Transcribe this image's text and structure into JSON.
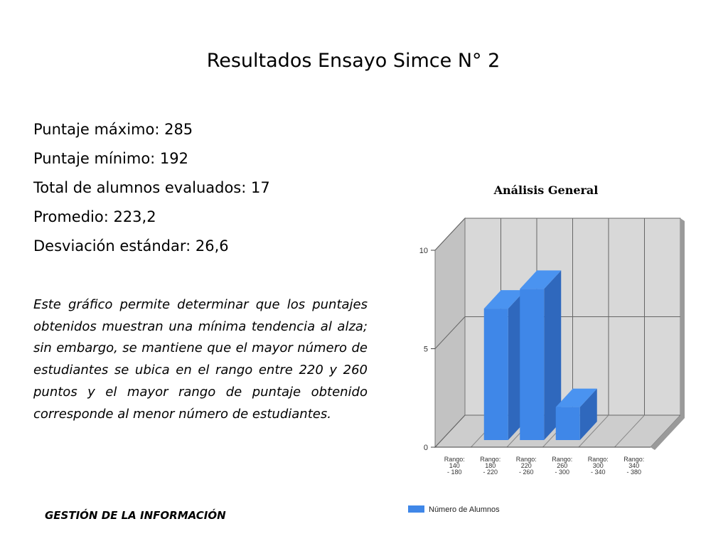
{
  "slide": {
    "title": "Resultados Ensayo Simce N° 2",
    "stats": [
      "Puntaje máximo: 285",
      "Puntaje mínimo: 192",
      "Total de alumnos evaluados: 17",
      "Promedio: 223,2",
      "Desviación estándar: 26,6"
    ],
    "description": "Este gráfico permite determinar que los puntajes obtenidos  muestran una mínima tendencia al alza; sin embargo, se mantiene que el mayor número de estudiantes se ubica en el rango entre 220 y 260 puntos y el mayor rango de puntaje obtenido corresponde al menor número de estudiantes.",
    "footer": "GESTIÓN DE LA INFORMACIÓN"
  },
  "chart_data": {
    "type": "bar",
    "title": "Análisis General",
    "categories": [
      [
        "Rango:",
        "140",
        "- 180"
      ],
      [
        "Rango:",
        "180",
        "- 220"
      ],
      [
        "Rango:",
        "220",
        "- 260"
      ],
      [
        "Rango:",
        "260",
        "- 300"
      ],
      [
        "Rango:",
        "300",
        "- 340"
      ],
      [
        "Rango:",
        "340",
        "- 380"
      ]
    ],
    "series": [
      {
        "name": "Número de Alumnos",
        "values": [
          0,
          7,
          8,
          2,
          0,
          0
        ]
      }
    ],
    "yticks": [
      "0",
      "5",
      "10"
    ],
    "ylim": [
      0,
      10
    ],
    "style": "3d",
    "grid": true,
    "legend": "bottom-left",
    "colors": {
      "bar": "#3f87e8",
      "bar_top": "#4a93f0",
      "bar_side": "#2f68bd",
      "wall": "#d8d8d8",
      "wall_side": "#c2c2c2",
      "floor": "#cdcdcd"
    }
  }
}
